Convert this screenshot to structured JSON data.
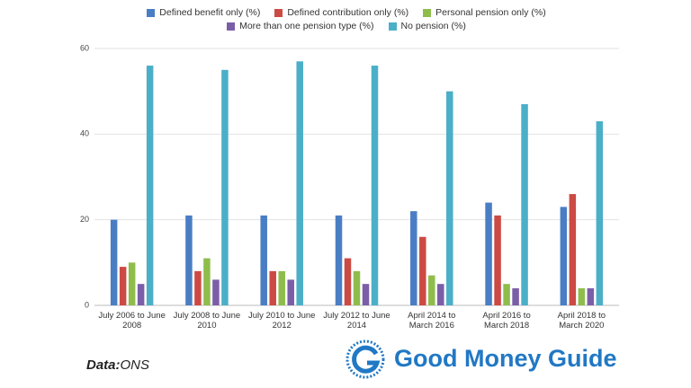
{
  "chart_data": {
    "type": "bar",
    "categories": [
      "July 2006 to June 2008",
      "July 2008 to June 2010",
      "July 2010 to June 2012",
      "July 2012 to June 2014",
      "April 2014 to March 2016",
      "April 2016 to March 2018",
      "April 2018 to March 2020"
    ],
    "series": [
      {
        "name": "Defined benefit only (%)",
        "color": "#4a7ec4",
        "values": [
          20,
          21,
          21,
          21,
          22,
          24,
          23
        ]
      },
      {
        "name": "Defined contribution only (%)",
        "color": "#cc4a44",
        "values": [
          9,
          8,
          8,
          11,
          16,
          21,
          26
        ]
      },
      {
        "name": "Personal pension only (%)",
        "color": "#8fbd4c",
        "values": [
          10,
          11,
          8,
          8,
          7,
          5,
          4
        ]
      },
      {
        "name": "More than one pension type (%)",
        "color": "#7b5ea8",
        "values": [
          5,
          6,
          6,
          5,
          5,
          4,
          4
        ]
      },
      {
        "name": "No pension (%)",
        "color": "#4bafc8",
        "values": [
          56,
          55,
          57,
          56,
          50,
          47,
          43
        ]
      }
    ],
    "ylim": [
      0,
      60
    ],
    "yticks": [
      0,
      20,
      40,
      60
    ],
    "grid": true,
    "legend": "top"
  },
  "footer": {
    "source_label": "Data:",
    "source": "ONS",
    "brand": "Good Money Guide"
  }
}
